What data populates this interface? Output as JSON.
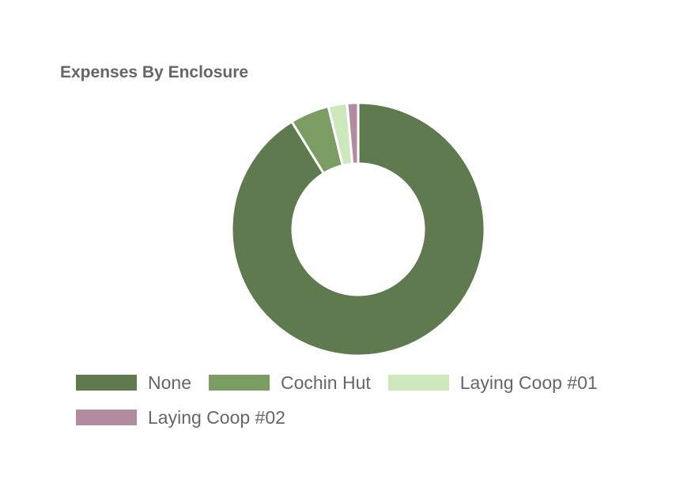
{
  "chart_data": {
    "type": "pie",
    "title": "Expenses By Enclosure",
    "series": [
      {
        "name": "None",
        "value": 91.2,
        "color": "#5f7a4f"
      },
      {
        "name": "Cochin Hut",
        "value": 5.0,
        "color": "#7b9c63"
      },
      {
        "name": "Laying Coop #01",
        "value": 2.4,
        "color": "#cde8bc"
      },
      {
        "name": "Laying Coop #02",
        "value": 1.4,
        "color": "#b28ba0"
      }
    ],
    "donut": true,
    "legend_position": "bottom"
  }
}
